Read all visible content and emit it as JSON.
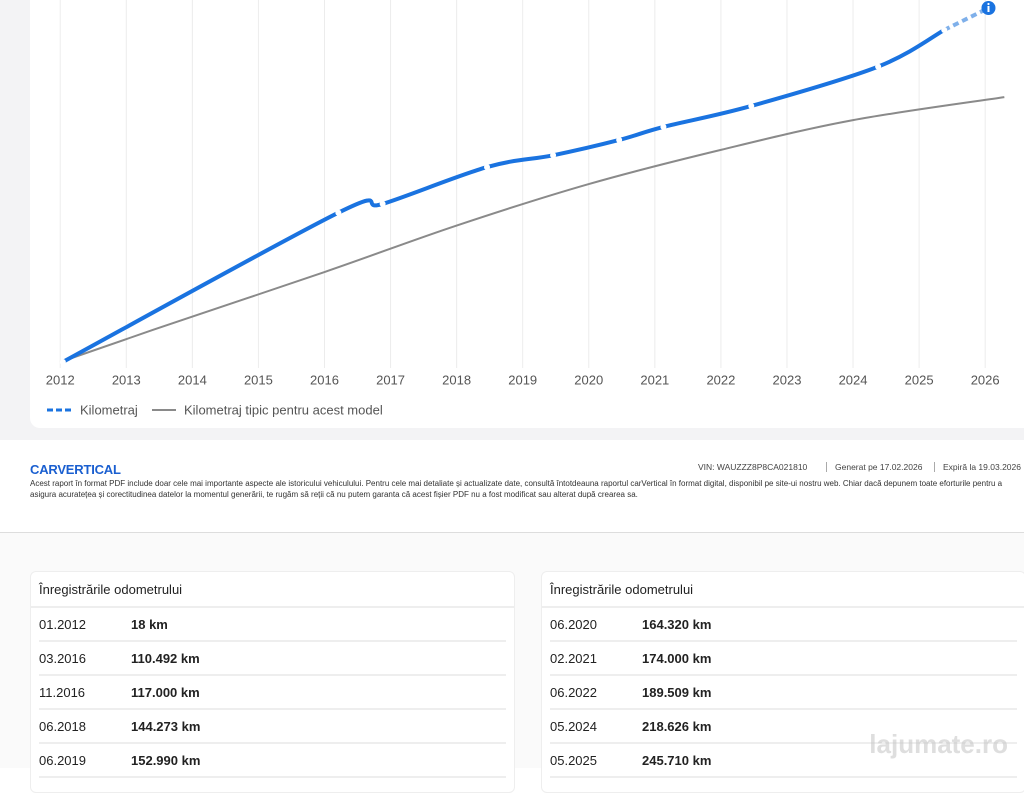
{
  "chart": {
    "type": "line",
    "xlim": [
      2011.8,
      2026.3
    ],
    "xticks": [
      2012,
      2013,
      2014,
      2015,
      2016,
      2017,
      2018,
      2019,
      2020,
      2021,
      2022,
      2023,
      2024,
      2025,
      2026
    ],
    "grid": true,
    "series": [
      {
        "name": "Kilometraj",
        "color": "#1a73e0",
        "x": [
          2012.04,
          2016.21,
          2016.88,
          2018.46,
          2019.46,
          2020.46,
          2021.13,
          2022.46,
          2024.38,
          2025.38
        ],
        "values": [
          18,
          110492,
          117000,
          144273,
          152990,
          164320,
          174000,
          189509,
          218626,
          245710
        ]
      },
      {
        "name": "Kilometraj tipic pentru acest model",
        "color": "#8a8a8a",
        "x": [
          2012.0,
          2013.4,
          2016.0,
          2018.0,
          2020.0,
          2022.0,
          2024.0,
          2026.29
        ],
        "values": [
          0,
          23700,
          66600,
          101000,
          131700,
          157000,
          179000,
          196000
        ]
      }
    ],
    "projection": {
      "x": 2026.05,
      "value": 262000
    }
  },
  "footer": {
    "logo": "CARVERTICAL",
    "vin": "VIN: WAUZZZ8P8CA021810",
    "generated": "Generat pe 17.02.2026",
    "expires": "Expiră la 19.03.2026",
    "disclaimer": "Acest raport în format PDF include doar cele mai importante aspecte ale istoricului vehiculului. Pentru cele mai detaliate și actualizate date, consultă întotdeauna raportul carVertical în format digital, disponibil pe site-ui nostru web. Chiar dacă depunem toate eforturile pentru a asigura acuratețea și corectitudinea datelor la momentul generării, te rugăm să reții că nu putem garanta că acest fișier PDF nu a fost modificat sau alterat după crearea sa."
  },
  "tables": [
    {
      "title": "Înregistrările odometrului",
      "rows": [
        [
          "01.2012",
          "18 km"
        ],
        [
          "03.2016",
          "110.492 km"
        ],
        [
          "11.2016",
          "117.000 km"
        ],
        [
          "06.2018",
          "144.273 km"
        ],
        [
          "06.2019",
          "152.990 km"
        ]
      ]
    },
    {
      "title": "Înregistrările odometrului",
      "rows": [
        [
          "06.2020",
          "164.320 km"
        ],
        [
          "02.2021",
          "174.000 km"
        ],
        [
          "06.2022",
          "189.509 km"
        ],
        [
          "05.2024",
          "218.626 km"
        ],
        [
          "05.2025",
          "245.710 km"
        ]
      ]
    }
  ],
  "watermark": "lajumate.ro"
}
